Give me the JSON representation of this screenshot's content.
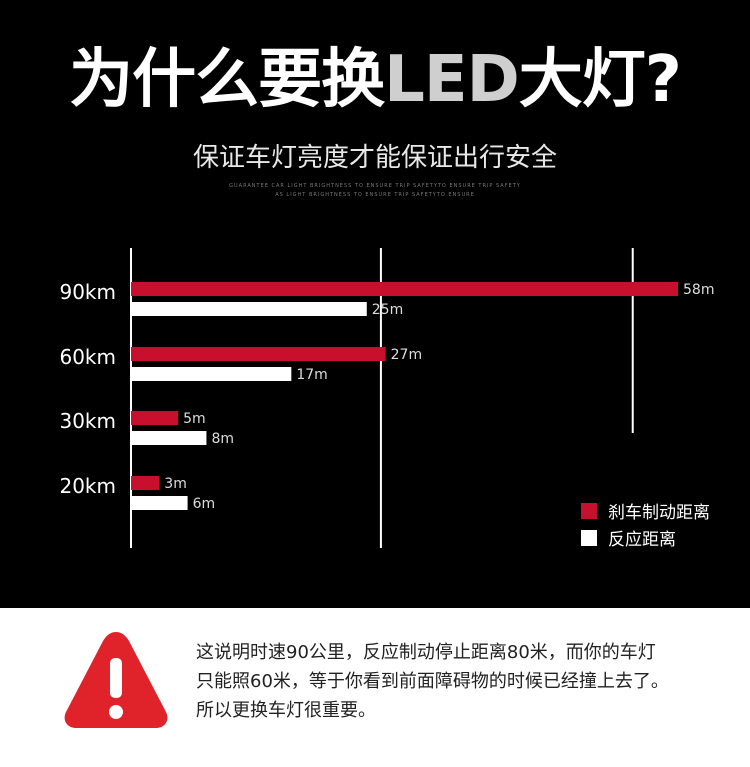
{
  "title_prefix": "为什么要换",
  "title_highlight": "LED",
  "title_suffix": "大灯?",
  "subtitle": "保证车灯亮度才能保证出行安全",
  "tagline_1": "GUARANTEE CAR LIGHT BRIGHTNESS TO ENSURE TRIP SAFETYTO ENSURE TRIP SAFETY",
  "tagline_2": "AS LIGHT BRIGHTNESS TO ENSURE TRIP SAFETYTO ENSURE",
  "chart_data": {
    "type": "bar",
    "orientation": "horizontal",
    "categories": [
      "90km",
      "60km",
      "30km",
      "20km"
    ],
    "series": [
      {
        "name": "刹车制动距离",
        "values": [
          58,
          27,
          5,
          3
        ],
        "labels": [
          "58m",
          "27m",
          "5m",
          "3m"
        ],
        "color": "#c8102e"
      },
      {
        "name": "反应距离",
        "values": [
          25,
          17,
          8,
          6
        ],
        "labels": [
          "25m",
          "17m",
          "8m",
          "6m"
        ],
        "color": "#ffffff"
      }
    ],
    "xlim": [
      0,
      60
    ],
    "reference_lines": [
      26.5,
      53.2
    ],
    "legend_position": "bottom-right",
    "grid": false
  },
  "warning": {
    "icon": "warning-triangle-icon",
    "color": "#e0232b",
    "lines": [
      "这说明时速90公里，反应制动停止距离80米，而你的车灯",
      "只能照60米，等于你看到前面障碍物的时候已经撞上去了。",
      "所以更换车灯很重要。"
    ]
  }
}
